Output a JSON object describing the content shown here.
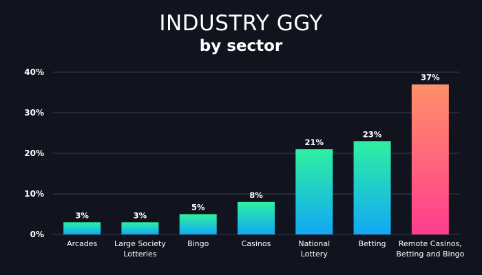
{
  "chart_data": {
    "type": "bar",
    "title": "INDUSTRY GGY",
    "subtitle": "by sector",
    "categories": [
      [
        "Arcades"
      ],
      [
        "Large Society",
        "Lotteries"
      ],
      [
        "Bingo"
      ],
      [
        "Casinos"
      ],
      [
        "National",
        "Lottery"
      ],
      [
        "Betting"
      ],
      [
        "Remote Casinos,",
        "Betting and Bingo"
      ]
    ],
    "values": [
      3,
      3,
      5,
      8,
      21,
      23,
      37
    ],
    "value_labels": [
      "3%",
      "3%",
      "5%",
      "8%",
      "21%",
      "23%",
      "37%"
    ],
    "ylim": [
      0,
      40
    ],
    "yticks": [
      0,
      10,
      20,
      30,
      40
    ],
    "ytick_labels": [
      "0%",
      "10%",
      "20%",
      "30%",
      "40%"
    ],
    "xlabel": "",
    "ylabel": "",
    "grid": true,
    "legend": "none",
    "colors": {
      "background": "#11131f",
      "grid": "#3a3d4c",
      "bar_gradient_top": "#2ef0a0",
      "bar_gradient_bottom": "#12a8f5",
      "highlight_gradient_top": "#ff9068",
      "highlight_gradient_bottom": "#ff3d8f",
      "text": "#ffffff"
    },
    "highlight_index": 6
  }
}
